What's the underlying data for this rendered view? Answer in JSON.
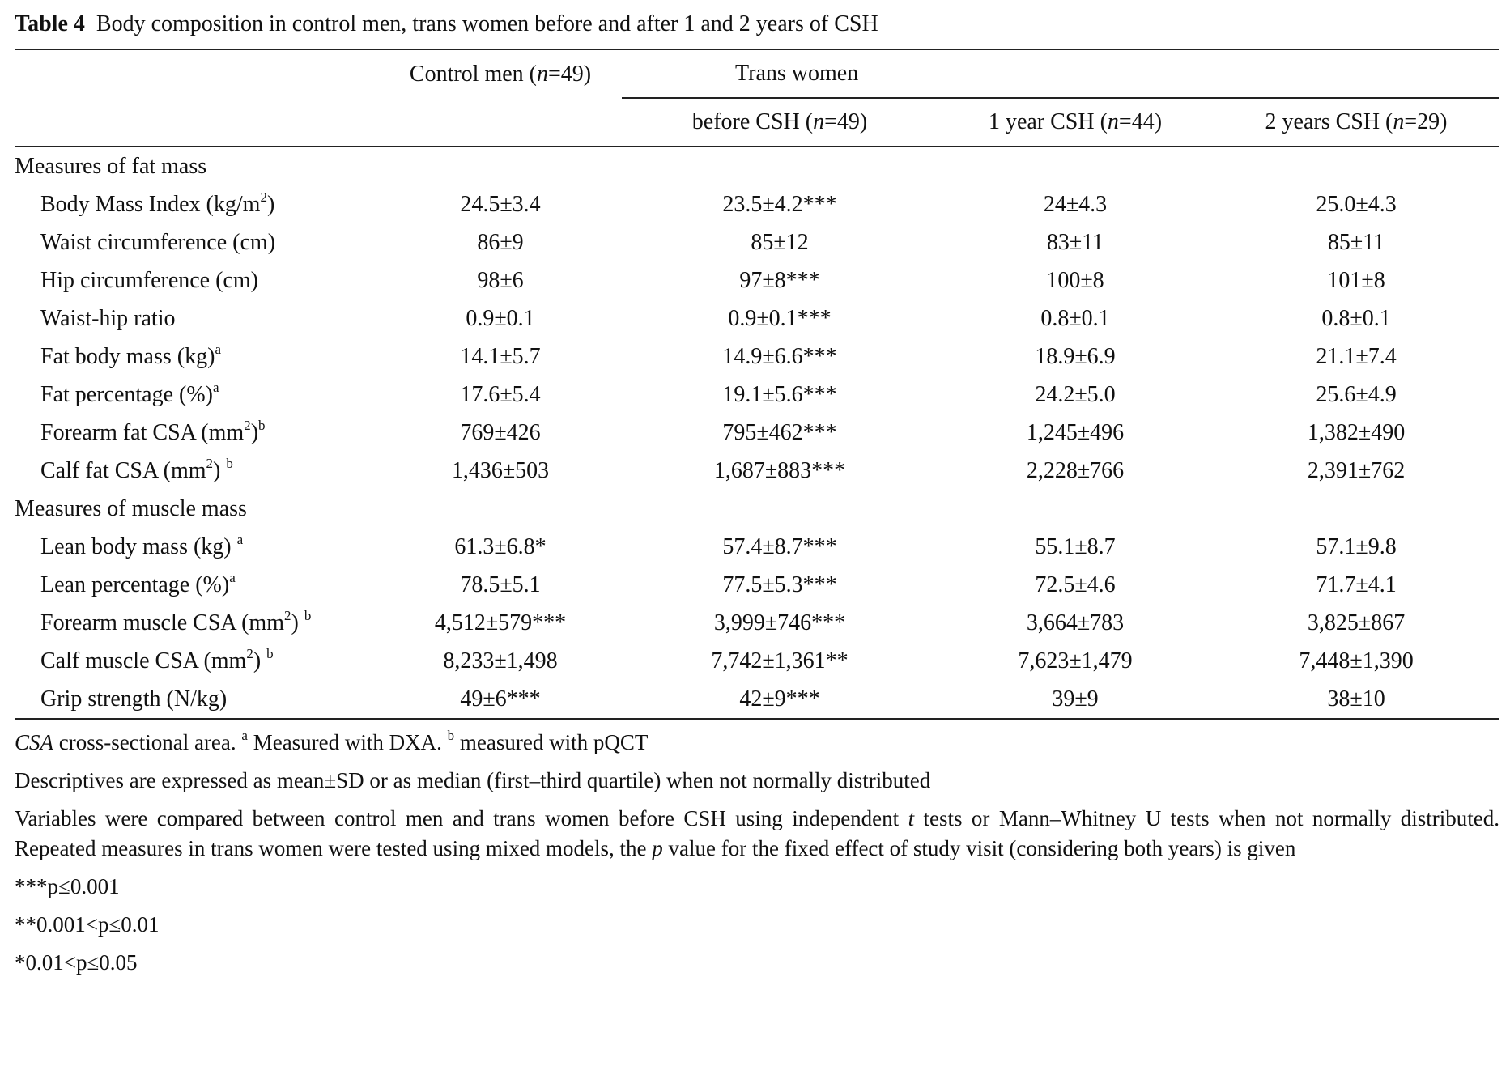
{
  "table": {
    "number": "Table 4",
    "caption": "Body composition in control men, trans women before and after 1 and 2 years of CSH",
    "header": {
      "control": [
        "Control men (",
        "n",
        "=49)"
      ],
      "group": "Trans women",
      "before": [
        "before CSH (",
        "n",
        "=49)"
      ],
      "year1": [
        "1 year CSH (",
        "n",
        "=44)"
      ],
      "year2": [
        "2 years CSH (",
        "n",
        "=29)"
      ]
    },
    "sections": [
      {
        "title": "Measures of fat mass",
        "rows": [
          {
            "label": [
              "Body Mass Index (kg/m",
              "2",
              ")"
            ],
            "cells": [
              "24.5±3.4",
              "23.5±4.2***",
              "24±4.3",
              "25.0±4.3"
            ]
          },
          {
            "label": [
              "Waist circumference (cm)"
            ],
            "cells": [
              "86±9",
              "85±12",
              "83±11",
              "85±11"
            ]
          },
          {
            "label": [
              "Hip circumference (cm)"
            ],
            "cells": [
              "98±6",
              "97±8***",
              "100±8",
              "101±8"
            ]
          },
          {
            "label": [
              "Waist-hip ratio"
            ],
            "cells": [
              "0.9±0.1",
              "0.9±0.1***",
              "0.8±0.1",
              "0.8±0.1"
            ]
          },
          {
            "label": [
              "Fat body mass (kg)",
              "a"
            ],
            "cells": [
              "14.1±5.7",
              "14.9±6.6***",
              "18.9±6.9",
              "21.1±7.4"
            ]
          },
          {
            "label": [
              "Fat percentage (%)",
              "a"
            ],
            "cells": [
              "17.6±5.4",
              "19.1±5.6***",
              "24.2±5.0",
              "25.6±4.9"
            ]
          },
          {
            "label": [
              "Forearm fat CSA (mm",
              "2",
              ")",
              "b"
            ],
            "cells": [
              "769±426",
              "795±462***",
              "1,245±496",
              "1,382±490"
            ]
          },
          {
            "label": [
              "Calf fat CSA (mm",
              "2",
              ") ",
              "b"
            ],
            "cells": [
              "1,436±503",
              "1,687±883***",
              "2,228±766",
              "2,391±762"
            ]
          }
        ]
      },
      {
        "title": "Measures of muscle mass",
        "rows": [
          {
            "label": [
              "Lean body mass (kg) ",
              "a"
            ],
            "cells": [
              "61.3±6.8*",
              "57.4±8.7***",
              "55.1±8.7",
              "57.1±9.8"
            ]
          },
          {
            "label": [
              "Lean percentage (%)",
              "a"
            ],
            "cells": [
              "78.5±5.1",
              "77.5±5.3***",
              "72.5±4.6",
              "71.7±4.1"
            ]
          },
          {
            "label": [
              "Forearm muscle CSA (mm",
              "2",
              ") ",
              "b"
            ],
            "cells": [
              "4,512±579***",
              "3,999±746***",
              "3,664±783",
              "3,825±867"
            ]
          },
          {
            "label": [
              "Calf muscle CSA (mm",
              "2",
              ") ",
              "b"
            ],
            "cells": [
              "8,233±1,498",
              "7,742±1,361**",
              "7,623±1,479",
              "7,448±1,390"
            ]
          },
          {
            "label": [
              "Grip strength (N/kg)"
            ],
            "cells": [
              "49±6***",
              "42±9***",
              "39±9",
              "38±10"
            ]
          }
        ]
      }
    ],
    "footnotes": [
      [
        "CSA",
        " cross-sectional area. ",
        "a",
        " Measured with DXA. ",
        "b",
        " measured with pQCT"
      ],
      "Descriptives are expressed as mean±SD or as median (first–third quartile) when not normally distributed",
      [
        "Variables were compared between control men and trans women before CSH using independent ",
        "t",
        " tests or Mann–Whitney U tests when not normally distributed. Repeated measures in trans women were tested using mixed models, the ",
        "p",
        " value for the fixed effect of study visit (considering both years) is given"
      ],
      "***p≤0.001",
      "**0.001<p≤0.01",
      "*0.01<p≤0.05"
    ]
  }
}
